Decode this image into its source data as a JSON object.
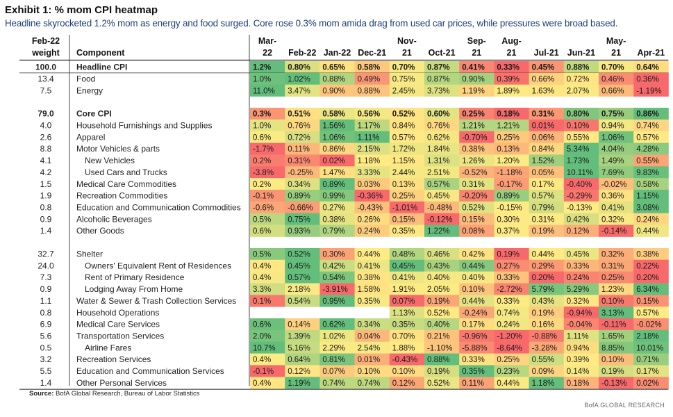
{
  "title": "Exhibit 1: % mom CPI heatmap",
  "subtitle": "Headline skyrocketed 1.2% mom as energy and food surged. Core rose 0.3% mom amida drag from used car prices, while pressures were broad based.",
  "source_label": "Source:",
  "source_text": "BofA Global Research, Bureau of Labor Statistics",
  "footer": "BofA GLOBAL RESEARCH",
  "chart_data": {
    "type": "heatmap",
    "weight_header": [
      "Feb-22",
      "weight"
    ],
    "component_header": "Component",
    "columns": [
      [
        "Mar-",
        "22"
      ],
      [
        "Feb-22"
      ],
      [
        "Jan-22"
      ],
      [
        "Dec-21"
      ],
      [
        "Nov-",
        "21"
      ],
      [
        "Oct-21"
      ],
      [
        "Sep-",
        "21"
      ],
      [
        "Aug-",
        "21"
      ],
      [
        "Jul-21"
      ],
      [
        "Jun-21"
      ],
      [
        "May-",
        "21"
      ],
      [
        "Apr-21"
      ]
    ],
    "colors": {
      "green": "#63be7b",
      "yellow": "#ffeb84",
      "red": "#f8696b"
    },
    "rows": [
      {
        "weight": "100.0",
        "label": "Headline CPI",
        "bold": true,
        "indent": 0,
        "values": [
          "1.2%",
          "0.80%",
          "0.65%",
          "0.58%",
          "0.70%",
          "0.87%",
          "0.41%",
          "0.33%",
          "0.45%",
          "0.88%",
          "0.70%",
          "0.64%"
        ]
      },
      {
        "weight": "13.4",
        "label": "Food",
        "indent": 0,
        "values": [
          "1.0%",
          "1.02%",
          "0.88%",
          "0.49%",
          "0.75%",
          "0.87%",
          "0.90%",
          "0.39%",
          "0.66%",
          "0.72%",
          "0.46%",
          "0.36%"
        ]
      },
      {
        "weight": "7.5",
        "label": "Energy",
        "indent": 0,
        "values": [
          "11.0%",
          "3.47%",
          "0.90%",
          "0.88%",
          "2.45%",
          "3.73%",
          "1.19%",
          "1.89%",
          "1.63%",
          "2.07%",
          "0.66%",
          "-1.19%"
        ]
      },
      {
        "gap": true
      },
      {
        "weight": "79.0",
        "label": "Core CPI",
        "bold": true,
        "indent": 0,
        "values": [
          "0.3%",
          "0.51%",
          "0.58%",
          "0.56%",
          "0.52%",
          "0.60%",
          "0.25%",
          "0.18%",
          "0.31%",
          "0.80%",
          "0.75%",
          "0.86%"
        ]
      },
      {
        "weight": "4.0",
        "label": "Household Furnishings and Supplies",
        "indent": 0,
        "values": [
          "1.0%",
          "0.76%",
          "1.56%",
          "1.17%",
          "0.84%",
          "0.76%",
          "1.21%",
          "1.21%",
          "0.01%",
          "0.10%",
          "0.94%",
          "0.74%"
        ]
      },
      {
        "weight": "2.6",
        "label": "Apparel",
        "indent": 0,
        "values": [
          "0.6%",
          "0.72%",
          "1.06%",
          "1.11%",
          "0.57%",
          "0.62%",
          "-0.70%",
          "0.25%",
          "0.06%",
          "0.55%",
          "1.06%",
          "0.57%"
        ]
      },
      {
        "weight": "8.8",
        "label": "Motor Vehicles & parts",
        "indent": 0,
        "values": [
          "-1.7%",
          "0.11%",
          "0.86%",
          "2.15%",
          "1.72%",
          "1.84%",
          "0.38%",
          "0.13%",
          "0.84%",
          "5.34%",
          "4.04%",
          "4.28%"
        ]
      },
      {
        "weight": "4.1",
        "label": "New Vehicles",
        "indent": 1,
        "values": [
          "0.2%",
          "0.31%",
          "0.02%",
          "1.18%",
          "1.15%",
          "1.31%",
          "1.26%",
          "1.20%",
          "1.52%",
          "1.73%",
          "1.49%",
          "0.55%"
        ]
      },
      {
        "weight": "4.2",
        "label": "Used Cars and Trucks",
        "indent": 1,
        "values": [
          "-3.8%",
          "-0.25%",
          "1.47%",
          "3.33%",
          "2.44%",
          "2.51%",
          "-0.52%",
          "-1.18%",
          "0.05%",
          "10.11%",
          "7.69%",
          "9.83%"
        ]
      },
      {
        "weight": "1.5",
        "label": "Medical Care Commodities",
        "indent": 0,
        "values": [
          "0.2%",
          "0.34%",
          "0.89%",
          "0.03%",
          "0.13%",
          "0.57%",
          "0.31%",
          "-0.17%",
          "0.17%",
          "-0.40%",
          "-0.02%",
          "0.58%"
        ]
      },
      {
        "weight": "1.9",
        "label": "Recreation Commodities",
        "indent": 0,
        "values": [
          "-0.1%",
          "0.89%",
          "0.99%",
          "-0.36%",
          "0.25%",
          "0.45%",
          "-0.20%",
          "0.89%",
          "0.57%",
          "-0.29%",
          "0.36%",
          "1.15%"
        ]
      },
      {
        "weight": "0.8",
        "label": "Education and Communication Commodities",
        "indent": 0,
        "values": [
          "-0.6%",
          "-0.66%",
          "0.27%",
          "-0.43%",
          "-1.01%",
          "-0.48%",
          "0.52%",
          "-0.15%",
          "0.79%",
          "-0.13%",
          "0.41%",
          "3.08%"
        ]
      },
      {
        "weight": "0.9",
        "label": "Alcoholic Beverages",
        "indent": 0,
        "values": [
          "0.5%",
          "0.75%",
          "0.38%",
          "0.26%",
          "0.15%",
          "-0.12%",
          "0.15%",
          "0.30%",
          "0.31%",
          "0.42%",
          "0.32%",
          "0.24%"
        ]
      },
      {
        "weight": "1.4",
        "label": "Other Goods",
        "indent": 0,
        "values": [
          "0.6%",
          "0.93%",
          "0.79%",
          "0.24%",
          "0.35%",
          "1.22%",
          "0.08%",
          "0.37%",
          "0.19%",
          "0.12%",
          "-0.14%",
          "0.44%"
        ]
      },
      {
        "gap": true
      },
      {
        "weight": "32.7",
        "label": "Shelter",
        "indent": 0,
        "values": [
          "0.5%",
          "0.52%",
          "0.30%",
          "0.44%",
          "0.48%",
          "0.46%",
          "0.42%",
          "0.19%",
          "0.44%",
          "0.45%",
          "0.32%",
          "0.38%"
        ]
      },
      {
        "weight": "24.0",
        "label": "Owners' Equivalent Rent of Residences",
        "indent": 1,
        "values": [
          "0.4%",
          "0.45%",
          "0.42%",
          "0.41%",
          "0.45%",
          "0.43%",
          "0.44%",
          "0.27%",
          "0.29%",
          "0.33%",
          "0.31%",
          "0.22%"
        ]
      },
      {
        "weight": "7.3",
        "label": "Rent of Primary Residence",
        "indent": 1,
        "values": [
          "0.4%",
          "0.57%",
          "0.54%",
          "0.38%",
          "0.41%",
          "0.40%",
          "0.40%",
          "0.33%",
          "0.20%",
          "0.24%",
          "0.25%",
          "0.20%"
        ]
      },
      {
        "weight": "0.9",
        "label": "Lodging Away From Home",
        "indent": 1,
        "values": [
          "3.3%",
          "2.18%",
          "-3.91%",
          "1.58%",
          "1.91%",
          "2.05%",
          "0.10%",
          "-2.72%",
          "5.79%",
          "5.29%",
          "1.23%",
          "6.34%"
        ]
      },
      {
        "weight": "1.1",
        "label": "Water & Sewer & Trash Collection Services",
        "indent": 0,
        "values": [
          "0.1%",
          "0.54%",
          "0.95%",
          "0.35%",
          "0.07%",
          "0.19%",
          "0.44%",
          "0.33%",
          "0.43%",
          "0.32%",
          "0.10%",
          "0.15%"
        ]
      },
      {
        "weight": "0.8",
        "label": "Household Operations",
        "indent": 0,
        "values": [
          "",
          "",
          "",
          "",
          "1.13%",
          "0.52%",
          "-0.24%",
          "0.74%",
          "0.19%",
          "-0.94%",
          "3.13%",
          "0.57%"
        ]
      },
      {
        "weight": "6.9",
        "label": "Medical Care Services",
        "indent": 0,
        "values": [
          "0.6%",
          "0.14%",
          "0.62%",
          "0.34%",
          "0.35%",
          "0.40%",
          "0.17%",
          "0.24%",
          "0.16%",
          "-0.04%",
          "-0.11%",
          "-0.02%"
        ]
      },
      {
        "weight": "5.6",
        "label": "Transportation Services",
        "indent": 0,
        "values": [
          "2.0%",
          "1.39%",
          "1.02%",
          "0.04%",
          "0.70%",
          "0.21%",
          "-0.96%",
          "-1.20%",
          "-0.88%",
          "1.11%",
          "1.65%",
          "2.18%"
        ]
      },
      {
        "weight": "0.5",
        "label": "Airline Fares",
        "indent": 1,
        "values": [
          "10.7%",
          "5.16%",
          "2.29%",
          "2.54%",
          "1.88%",
          "-1.10%",
          "-5.88%",
          "-8.64%",
          "-3.28%",
          "0.94%",
          "8.85%",
          "10.01%"
        ]
      },
      {
        "weight": "3.2",
        "label": "Recreation Services",
        "indent": 0,
        "values": [
          "0.4%",
          "0.64%",
          "0.81%",
          "0.01%",
          "-0.43%",
          "0.88%",
          "0.33%",
          "0.25%",
          "0.55%",
          "0.39%",
          "0.10%",
          "0.71%"
        ]
      },
      {
        "weight": "5.5",
        "label": "Education and Communication Services",
        "indent": 0,
        "values": [
          "-0.1%",
          "0.12%",
          "0.07%",
          "0.10%",
          "0.10%",
          "0.19%",
          "0.35%",
          "0.23%",
          "0.09%",
          "0.14%",
          "0.19%",
          "0.17%"
        ]
      },
      {
        "weight": "1.4",
        "label": "Other Personal Services",
        "indent": 0,
        "values": [
          "0.4%",
          "1.19%",
          "0.74%",
          "0.74%",
          "0.12%",
          "0.52%",
          "0.11%",
          "0.44%",
          "1.18%",
          "0.18%",
          "-0.13%",
          "0.02%"
        ]
      }
    ]
  }
}
